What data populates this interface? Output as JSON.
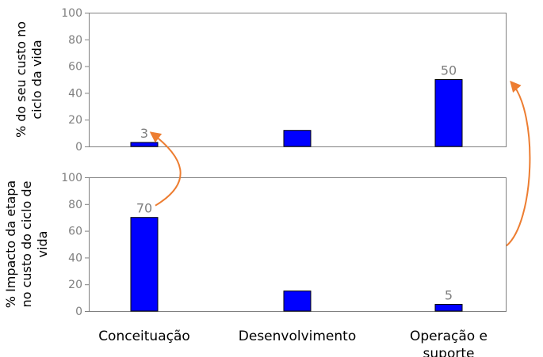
{
  "colors": {
    "bar": "#0000ff",
    "arrow": "#ed7d31",
    "frame": "#808080",
    "tick": "#7f7f7f"
  },
  "chart_data": [
    {
      "type": "bar",
      "categories": [
        "Conceituação",
        "Desenvolvimento",
        "Operação e suporte"
      ],
      "values": [
        3,
        12,
        50
      ],
      "data_labels": [
        "3",
        "",
        "50"
      ],
      "ylabel": "% do seu custo no ciclo da vida",
      "ylim": [
        0,
        100
      ],
      "yticks": [
        0,
        20,
        40,
        60,
        80,
        100
      ],
      "grid": false,
      "legend": "none"
    },
    {
      "type": "bar",
      "categories": [
        "Conceituação",
        "Desenvolvimento",
        "Operação e suporte"
      ],
      "values": [
        70,
        15,
        5
      ],
      "data_labels": [
        "70",
        "",
        "5"
      ],
      "ylabel": "% Impacto da etapa no custo do ciclo de vida",
      "ylim": [
        0,
        100
      ],
      "yticks": [
        0,
        20,
        40,
        60,
        80,
        100
      ],
      "grid": false,
      "legend": "none"
    }
  ],
  "labels": {
    "top_ylabel_lines": [
      "% do seu custo no",
      "ciclo da vida"
    ],
    "bottom_ylabel_lines": [
      "% Impacto da etapa",
      "no custo do ciclo de",
      "vida"
    ],
    "category_lines": [
      [
        "Conceituação"
      ],
      [
        "Desenvolvimento"
      ],
      [
        "Operação e",
        "suporte"
      ]
    ]
  },
  "annotations": [
    {
      "from": "bottom-label-70",
      "to": "top-label-3",
      "color": "#ed7d31"
    },
    {
      "from": "bottom-frame-right",
      "to": "top-frame-right",
      "color": "#ed7d31"
    }
  ]
}
